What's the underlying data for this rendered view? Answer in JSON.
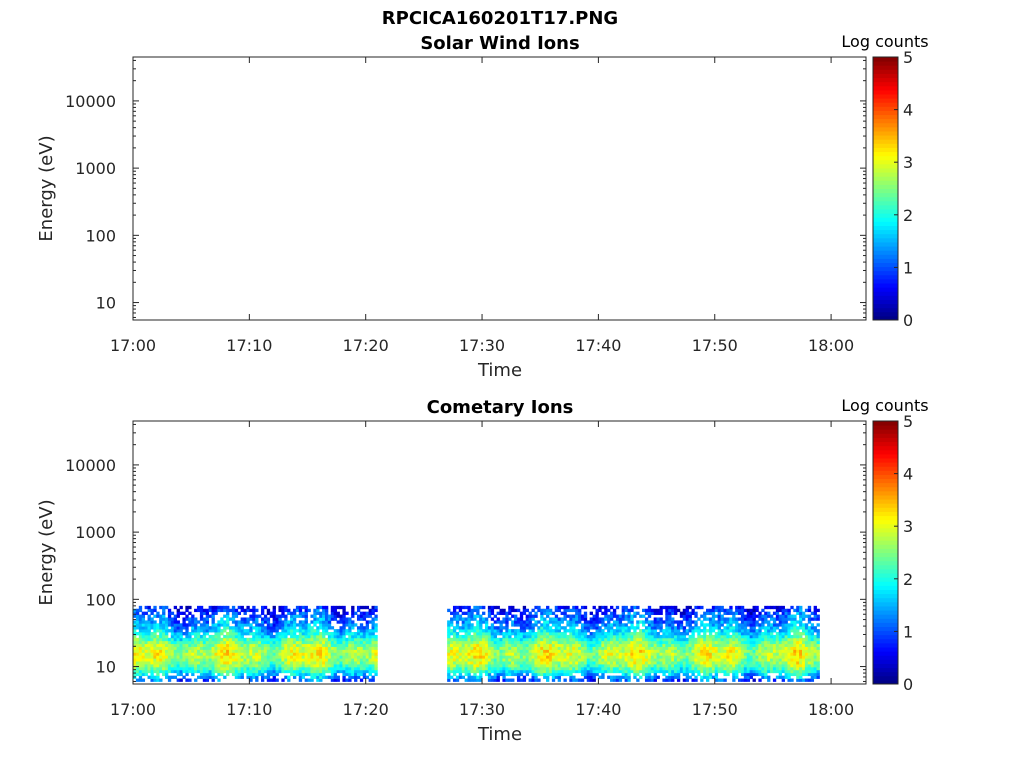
{
  "figure": {
    "filename_title": "RPCICA160201T17.PNG"
  },
  "colorbar_ticks": [
    "0",
    "1",
    "2",
    "3",
    "4",
    "5"
  ],
  "chart_data": [
    {
      "type": "heatmap",
      "title": "Solar Wind Ions",
      "xlabel": "Time",
      "ylabel": "Energy (eV)",
      "colorbar_label": "Log counts",
      "colorbar_range": [
        0,
        5
      ],
      "colormap": "jet",
      "y_scale": "log",
      "ylim": [
        5.5,
        45000
      ],
      "x_range": [
        "17:00",
        "18:03"
      ],
      "x_ticks": [
        "17:00",
        "17:10",
        "17:20",
        "17:30",
        "17:40",
        "17:50",
        "18:00"
      ],
      "y_ticks": [
        "10",
        "100",
        "1000",
        "10000"
      ],
      "data_segments": []
    },
    {
      "type": "heatmap",
      "title": "Cometary Ions",
      "xlabel": "Time",
      "ylabel": "Energy (eV)",
      "colorbar_label": "Log counts",
      "colorbar_range": [
        0,
        5
      ],
      "colormap": "jet",
      "y_scale": "log",
      "ylim": [
        5.5,
        45000
      ],
      "x_range": [
        "17:00",
        "18:03"
      ],
      "x_ticks": [
        "17:00",
        "17:10",
        "17:20",
        "17:30",
        "17:40",
        "17:50",
        "18:00"
      ],
      "y_ticks": [
        "10",
        "100",
        "1000",
        "10000"
      ],
      "data_segments": [
        {
          "start": "17:00",
          "end": "17:21"
        },
        {
          "start": "17:27",
          "end": "17:59"
        }
      ],
      "energy_profile": [
        {
          "energy_eV": 6,
          "log_counts": 0.9
        },
        {
          "energy_eV": 8,
          "log_counts": 1.8
        },
        {
          "energy_eV": 11,
          "log_counts": 2.6
        },
        {
          "energy_eV": 15,
          "log_counts": 2.9
        },
        {
          "energy_eV": 20,
          "log_counts": 2.7
        },
        {
          "energy_eV": 28,
          "log_counts": 2.0
        },
        {
          "energy_eV": 40,
          "log_counts": 1.4
        },
        {
          "energy_eV": 60,
          "log_counts": 1.0
        },
        {
          "energy_eV": 80,
          "log_counts": 0.6
        }
      ]
    }
  ]
}
